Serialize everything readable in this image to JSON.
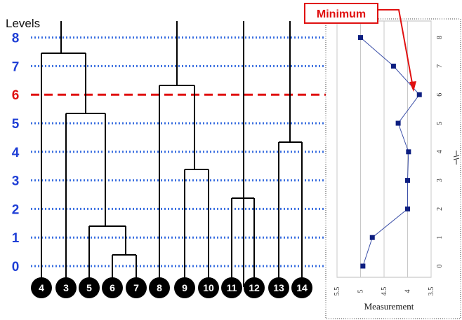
{
  "levels_title": "Levels",
  "levels": [
    {
      "value": 8,
      "label": "8"
    },
    {
      "value": 7,
      "label": "7"
    },
    {
      "value": 6,
      "label": "6",
      "highlight": true
    },
    {
      "value": 5,
      "label": "5"
    },
    {
      "value": 4,
      "label": "4"
    },
    {
      "value": 3,
      "label": "3"
    },
    {
      "value": 2,
      "label": "2"
    },
    {
      "value": 1,
      "label": "1"
    },
    {
      "value": 0,
      "label": "0"
    }
  ],
  "leaves": [
    "4",
    "3",
    "5",
    "6",
    "7",
    "8",
    "9",
    "10",
    "11",
    "12",
    "13",
    "14"
  ],
  "callout": {
    "label": "Minimum"
  },
  "colors": {
    "level_number": "#1f3fd6",
    "level_line": "#3a6fe0",
    "highlight": "#e01010",
    "tree": "#000000",
    "node_fill": "#000000",
    "plot_line": "#3b4fa8",
    "plot_marker": "#0d1e80",
    "grid": "#c8c8c8"
  },
  "chart_data": {
    "type": "line",
    "xlabel": "Measurement",
    "xlim": [
      5.5,
      3.5
    ],
    "x_reversed": true,
    "x_ticks": [
      "5.5",
      "5",
      "4.5",
      "4",
      "3.5"
    ],
    "y_ticks": [
      "0",
      "1",
      "2",
      "3",
      "4",
      "5",
      "6",
      "7",
      "8"
    ],
    "ylim": [
      0,
      8
    ],
    "grid": "vertical",
    "series": [
      {
        "points": [
          {
            "y": 0,
            "x": 4.95
          },
          {
            "y": 1,
            "x": 4.75
          },
          {
            "y": 2,
            "x": 4.0
          },
          {
            "y": 3,
            "x": 4.0
          },
          {
            "y": 4,
            "x": 3.98
          },
          {
            "y": 5,
            "x": 4.2
          },
          {
            "y": 6,
            "x": 3.75
          },
          {
            "y": 7,
            "x": 4.3
          },
          {
            "y": 8,
            "x": 5.0
          }
        ]
      }
    ]
  }
}
